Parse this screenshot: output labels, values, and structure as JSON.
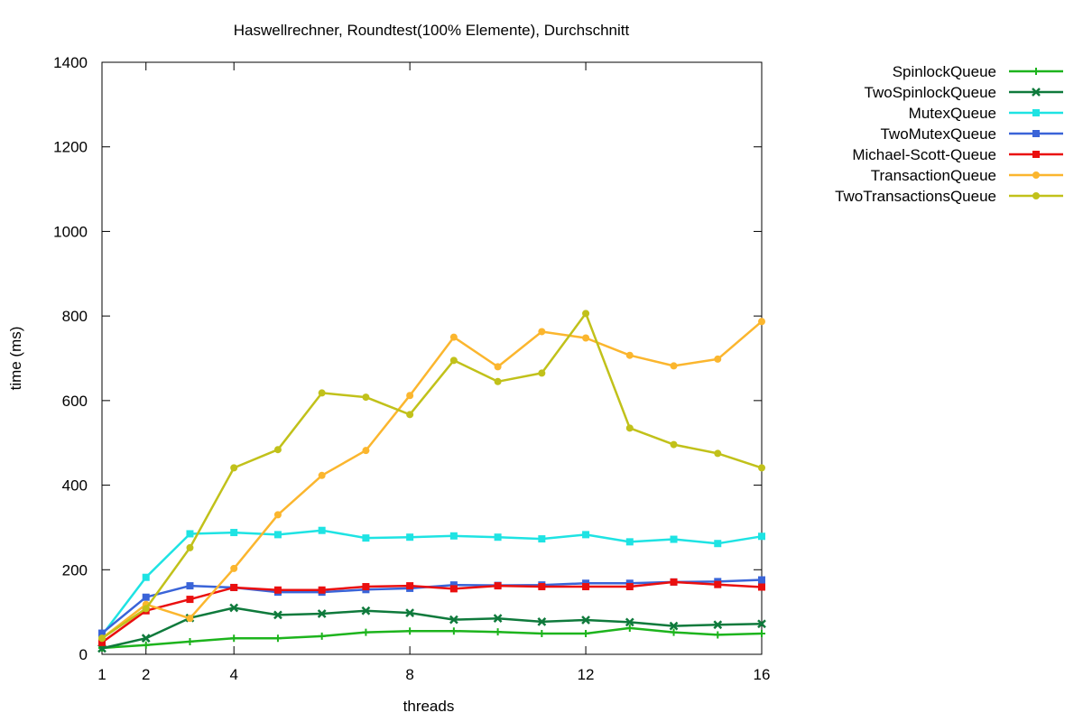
{
  "chart_data": {
    "type": "line",
    "title": "Haswellrechner, Roundtest(100% Elemente), Durchschnitt",
    "xlabel": "threads",
    "ylabel": "time (ms)",
    "xlim": [
      1,
      16
    ],
    "ylim": [
      0,
      1400
    ],
    "xticks": [
      1,
      2,
      4,
      8,
      12,
      16
    ],
    "yticks": [
      0,
      200,
      400,
      600,
      800,
      1000,
      1200,
      1400
    ],
    "grid": false,
    "legend_position": "top-right-outside",
    "x": [
      1,
      2,
      3,
      4,
      5,
      6,
      7,
      8,
      9,
      10,
      11,
      12,
      13,
      14,
      15,
      16
    ],
    "series": [
      {
        "name": "SpinlockQueue",
        "color": "#1db41d",
        "marker": "plus",
        "values": [
          15,
          22,
          30,
          38,
          38,
          43,
          52,
          55,
          55,
          53,
          49,
          49,
          62,
          52,
          46,
          49
        ]
      },
      {
        "name": "TwoSpinlockQueue",
        "color": "#0f7a3c",
        "marker": "x",
        "values": [
          14,
          38,
          86,
          110,
          93,
          96,
          103,
          98,
          82,
          85,
          77,
          81,
          76,
          67,
          70,
          72
        ]
      },
      {
        "name": "MutexQueue",
        "color": "#1ee3e3",
        "marker": "square",
        "values": [
          45,
          182,
          285,
          288,
          283,
          293,
          275,
          277,
          280,
          277,
          273,
          283,
          266,
          272,
          262,
          279
        ]
      },
      {
        "name": "TwoMutexQueue",
        "color": "#3a64d8",
        "marker": "square",
        "values": [
          50,
          135,
          162,
          158,
          147,
          147,
          153,
          156,
          164,
          163,
          164,
          168,
          168,
          171,
          172,
          176
        ]
      },
      {
        "name": "Michael-Scott-Queue",
        "color": "#ea0f0f",
        "marker": "square",
        "values": [
          28,
          103,
          130,
          158,
          152,
          152,
          160,
          162,
          155,
          162,
          160,
          160,
          160,
          171,
          165,
          159
        ]
      },
      {
        "name": "TransactionQueue",
        "color": "#fbb62e",
        "marker": "circle",
        "values": [
          38,
          118,
          85,
          203,
          330,
          423,
          482,
          612,
          750,
          680,
          763,
          748,
          707,
          682,
          698,
          787
        ]
      },
      {
        "name": "TwoTransactionsQueue",
        "color": "#c1c11a",
        "marker": "circle",
        "values": [
          38,
          108,
          252,
          441,
          484,
          618,
          608,
          567,
          695,
          645,
          665,
          806,
          535,
          496,
          475,
          441
        ]
      }
    ]
  }
}
